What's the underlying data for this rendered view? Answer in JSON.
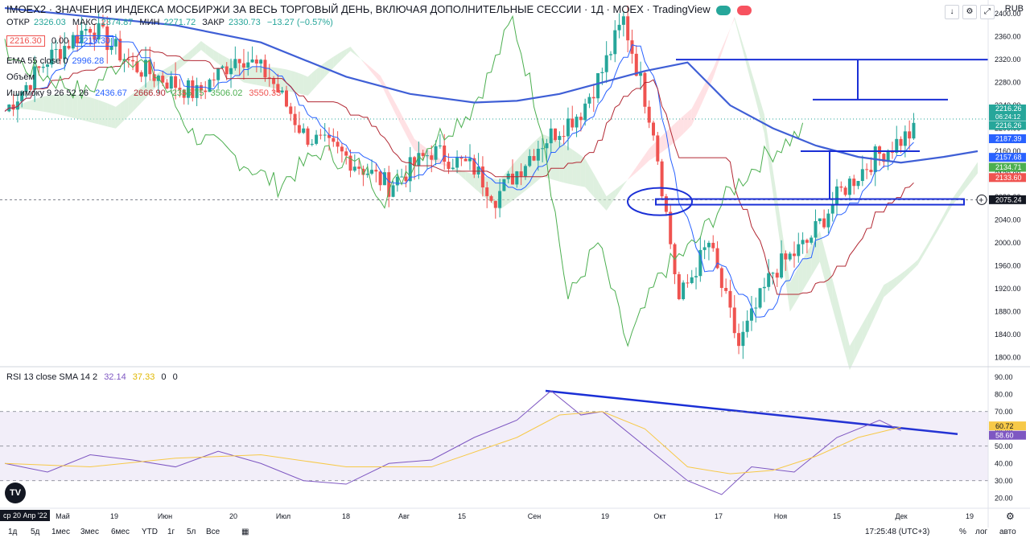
{
  "header": {
    "title": "IMOEX2 · ЗНАЧЕНИЯ ИНДЕКСА МОСБИРЖИ ЗА ВЕСЬ ТОРГОВЫЙ ДЕНЬ, ВКЛЮЧАЯ ДОПОЛНИТЕЛЬНЫЕ СЕССИИ · 1Д · MOEX · TradingView",
    "currency": "RUB",
    "ohlc": {
      "open_label": "ОТКР",
      "open": "2326.03",
      "high_label": "МАКС",
      "high": "2374.87",
      "low_label": "МИН",
      "low": "2271.72",
      "close_label": "ЗАКР",
      "close": "2330.73",
      "change": "−13.27 (−0.57%)"
    },
    "sell_price": "2216.30",
    "spread": "0.00",
    "buy_price": "2216.30"
  },
  "indicators": {
    "ema_label": "EMA 55 close 0",
    "ema_value": "2996.28",
    "volume_label": "Объём",
    "ichimoku_label": "Ишимоку 9 26 52 26",
    "ichimoku_values": [
      "2436.67",
      "2666.90",
      "2355.75",
      "3506.02",
      "3550.33"
    ],
    "rsi_label": "RSI 13 close SMA 14 2",
    "rsi_values": [
      "32.14",
      "37.33",
      "0",
      "0"
    ]
  },
  "price_axis": {
    "ticks": [
      "2400.00",
      "2360.00",
      "2320.00",
      "2280.00",
      "2240.00",
      "2200.00",
      "2160.00",
      "2120.00",
      "2080.00",
      "2040.00",
      "2000.00",
      "1960.00",
      "1920.00",
      "1880.00",
      "1840.00",
      "1800.00"
    ],
    "labels": [
      {
        "text": "2216.26",
        "sub": "06:24:12",
        "color": "#26a69a"
      },
      {
        "text": "2216.26",
        "color": "#26a69a"
      },
      {
        "text": "2187.39",
        "color": "#2962ff"
      },
      {
        "text": "2157.68",
        "color": "#2962ff"
      },
      {
        "text": "2134.71",
        "color": "#4caf50"
      },
      {
        "text": "2133.60",
        "color": "#ef5350"
      },
      {
        "text": "2075.24",
        "color": "#131722"
      }
    ]
  },
  "rsi_axis": {
    "ticks": [
      "90.00",
      "80.00",
      "70.00",
      "60.00",
      "50.00",
      "40.00",
      "30.00",
      "20.00"
    ],
    "labels": [
      {
        "text": "60.72",
        "color": "#f7c948"
      },
      {
        "text": "58.60",
        "color": "#7e57c2"
      }
    ]
  },
  "time_axis": {
    "labels": [
      "Май",
      "19",
      "Июн",
      "20",
      "Июл",
      "18",
      "Авг",
      "15",
      "Сен",
      "19",
      "Окт",
      "17",
      "Ноя",
      "15",
      "Дек",
      "19"
    ],
    "current_date": "ср 20 Апр '22"
  },
  "bottom_bar": {
    "ranges": [
      "1д",
      "5д",
      "1мес",
      "3мес",
      "6мес",
      "YTD",
      "1г",
      "5л",
      "Все"
    ],
    "clock": "17:25:48 (UTC+3)",
    "percent": "%",
    "log": "лог",
    "auto": "авто"
  },
  "colors": {
    "up": "#26a69a",
    "down": "#ef5350",
    "ema": "#3f5fd6",
    "tenkan": "#2962ff",
    "kijun": "#b22833",
    "chikou": "#4caf50",
    "cloud_bull": "#c8e6c9",
    "cloud_bear": "#ffcdd2",
    "rsi": "#7e57c2",
    "rsi_sma": "#f7c948",
    "drawing": "#1a2fd6"
  },
  "chart_data": {
    "type": "candlestick",
    "title": "IMOEX2 · 1Д · MOEX",
    "ylim": [
      1785,
      2410
    ],
    "series": [
      {
        "name": "EMA 55",
        "type": "line",
        "x": [
          0,
          20,
          40,
          60,
          80,
          95,
          110,
          120,
          130,
          140,
          150,
          160,
          170,
          180,
          190,
          200,
          210,
          220,
          228
        ],
        "values": [
          2410,
          2395,
          2380,
          2350,
          2290,
          2260,
          2245,
          2248,
          2260,
          2280,
          2300,
          2315,
          2240,
          2200,
          2170,
          2150,
          2140,
          2150,
          2160
        ]
      },
      {
        "name": "RSI",
        "type": "line",
        "x": [
          0,
          10,
          20,
          30,
          40,
          50,
          60,
          70,
          80,
          90,
          100,
          110,
          120,
          128,
          135,
          140,
          150,
          160,
          168,
          175,
          185,
          195,
          205,
          210
        ],
        "values": [
          40,
          35,
          45,
          42,
          38,
          47,
          40,
          30,
          28,
          40,
          42,
          55,
          65,
          82,
          68,
          70,
          50,
          30,
          22,
          38,
          35,
          55,
          65,
          59
        ]
      },
      {
        "name": "RSI SMA",
        "type": "line",
        "x": [
          0,
          20,
          40,
          60,
          80,
          100,
          120,
          130,
          140,
          150,
          160,
          170,
          180,
          190,
          200,
          210
        ],
        "values": [
          40,
          38,
          43,
          45,
          38,
          38,
          55,
          68,
          70,
          60,
          38,
          34,
          36,
          44,
          55,
          61
        ]
      }
    ],
    "last_price": 2216.26
  }
}
